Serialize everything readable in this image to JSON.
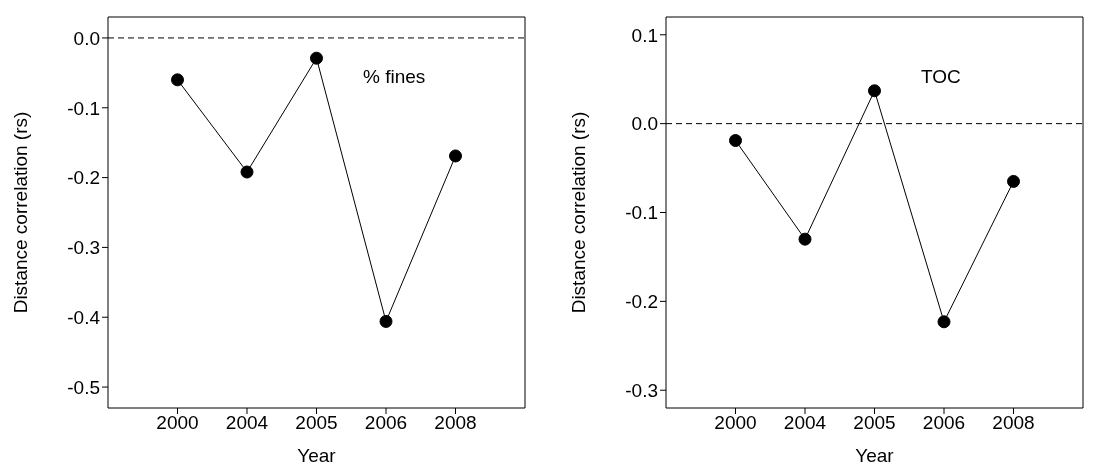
{
  "chart_data": [
    {
      "type": "line",
      "categories": [
        "2000",
        "2004",
        "2005",
        "2006",
        "2008"
      ],
      "xlabel": "Year",
      "ylabel": "Distance correlation (rs)",
      "annotations": [
        "% fines"
      ],
      "marker": "circle",
      "series": [
        {
          "color": "#000000",
          "values": [
            -0.06,
            -0.192,
            -0.029,
            -0.406,
            -0.169
          ]
        }
      ],
      "ylim": [
        -0.53,
        0.03
      ],
      "yticks": [
        {
          "value": 0,
          "label": "0.0"
        },
        -0.1,
        -0.2,
        -0.3,
        -0.4,
        -0.5
      ],
      "ref_lines": [
        {
          "axis": "y",
          "value": 0,
          "color": "#000000",
          "line_style": "dashed"
        }
      ]
    },
    {
      "type": "line",
      "categories": [
        "2000",
        "2004",
        "2005",
        "2006",
        "2008"
      ],
      "xlabel": "Year",
      "ylabel": "Distance correlation (rs)",
      "annotations": [
        "TOC"
      ],
      "marker": "circle",
      "series": [
        {
          "color": "#000000",
          "values": [
            -0.019,
            -0.13,
            0.037,
            -0.223,
            -0.065
          ]
        }
      ],
      "ylim": [
        -0.32,
        0.12
      ],
      "yticks": [
        0.1,
        {
          "value": 0,
          "label": "0.0"
        },
        -0.1,
        -0.2,
        -0.3
      ],
      "ref_lines": [
        {
          "axis": "y",
          "value": 0,
          "color": "#000000",
          "line_style": "dashed"
        }
      ]
    }
  ]
}
